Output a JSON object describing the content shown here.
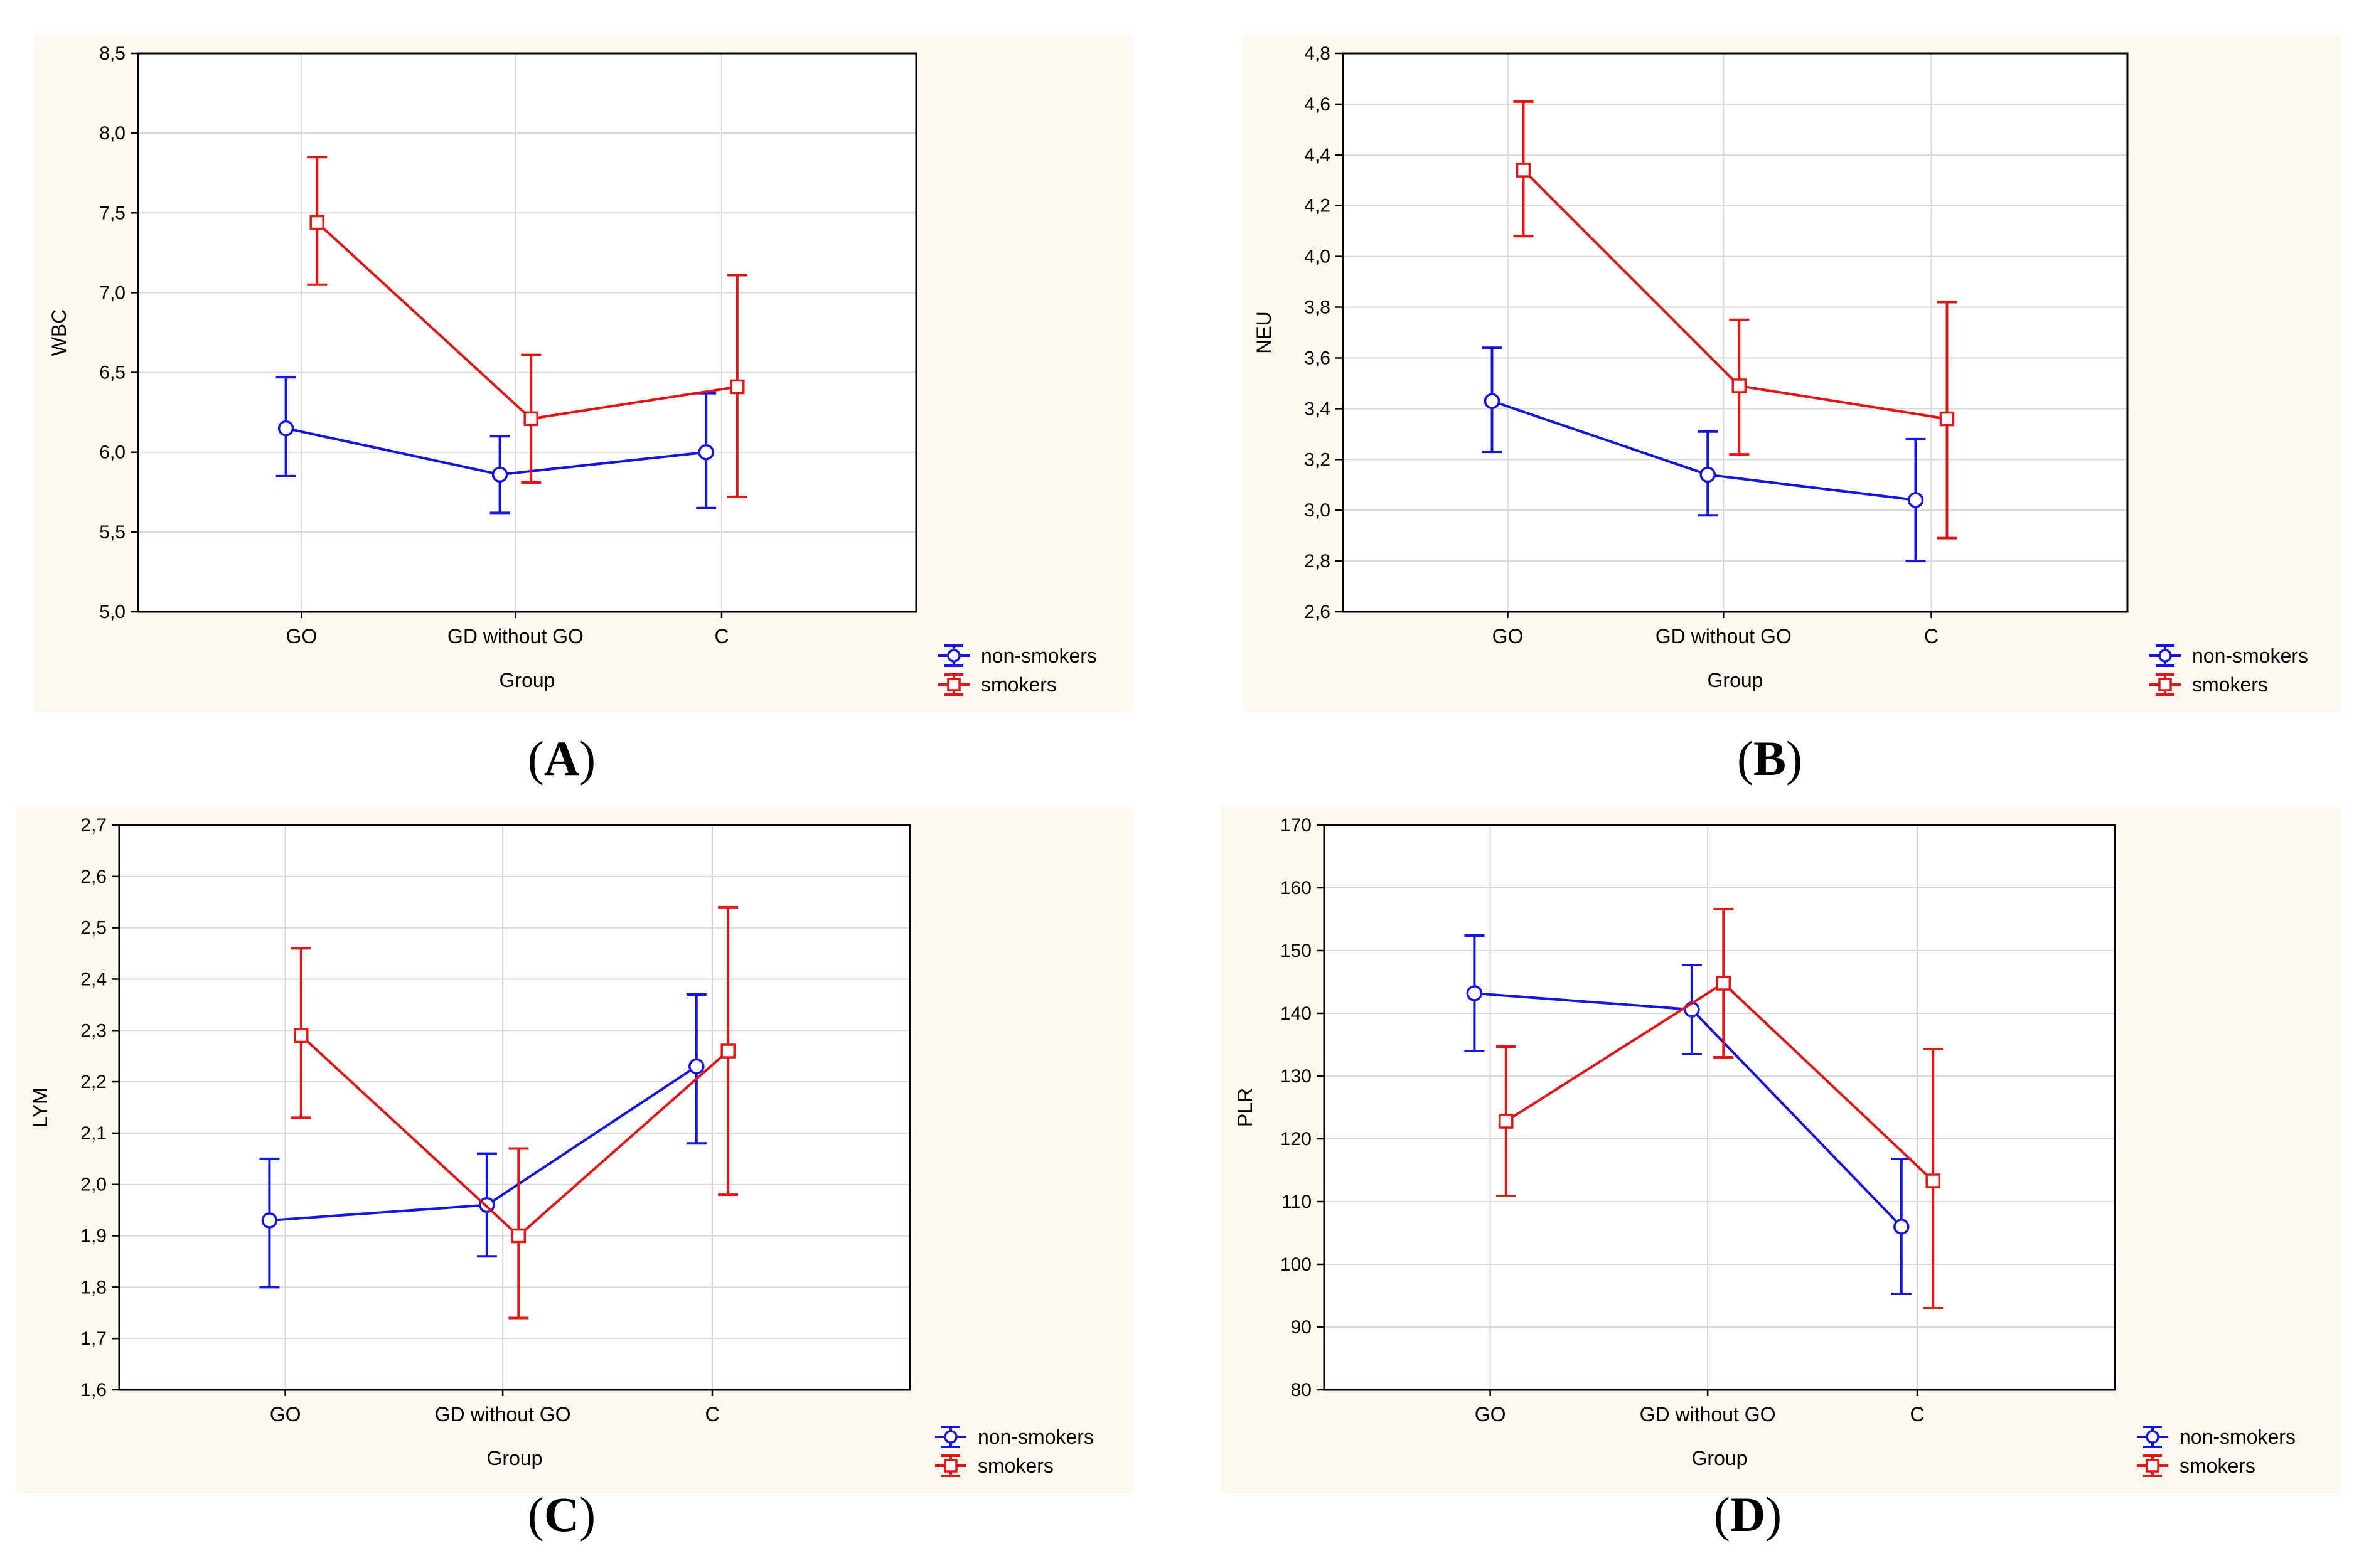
{
  "colors": {
    "panel_background": "#fef9ee",
    "plot_background": "#ffffff",
    "grid": "#d8d8d8",
    "axis": "#000000",
    "series": {
      "non-smokers": "#1414e6",
      "smokers": "#e61414"
    }
  },
  "chart_data": [
    {
      "panel": "A",
      "caption": {
        "open": "(",
        "letter": "A",
        "close": ")"
      },
      "type": "line",
      "error_bars": true,
      "title": "",
      "xlabel": "Group",
      "ylabel": "WBC",
      "categories": [
        "GO",
        "GD without GO",
        "C"
      ],
      "ylim": [
        5.0,
        8.5
      ],
      "yticks": [
        5.0,
        5.5,
        6.0,
        6.5,
        7.0,
        7.5,
        8.0,
        8.5
      ],
      "ytick_labels": [
        "5,0",
        "5,5",
        "6,0",
        "6,5",
        "7,0",
        "7,5",
        "8,0",
        "8,5"
      ],
      "grid": true,
      "legend_position": "bottom-right",
      "series": [
        {
          "name": "non-smokers",
          "marker": "circle",
          "values": [
            6.15,
            5.86,
            6.0
          ],
          "lower": [
            5.85,
            5.62,
            5.65
          ],
          "upper": [
            6.47,
            6.1,
            6.37
          ]
        },
        {
          "name": "smokers",
          "marker": "square",
          "values": [
            7.44,
            6.21,
            6.41
          ],
          "lower": [
            7.05,
            5.81,
            5.72
          ],
          "upper": [
            7.85,
            6.61,
            7.11
          ]
        }
      ]
    },
    {
      "panel": "B",
      "caption": {
        "open": "(",
        "letter": "B",
        "close": ")"
      },
      "type": "line",
      "error_bars": true,
      "title": "",
      "xlabel": "Group",
      "ylabel": "NEU",
      "categories": [
        "GO",
        "GD without GO",
        "C"
      ],
      "ylim": [
        2.6,
        4.8
      ],
      "yticks": [
        2.6,
        2.8,
        3.0,
        3.2,
        3.4,
        3.6,
        3.8,
        4.0,
        4.2,
        4.4,
        4.6,
        4.8
      ],
      "ytick_labels": [
        "2,6",
        "2,8",
        "3,0",
        "3,2",
        "3,4",
        "3,6",
        "3,8",
        "4,0",
        "4,2",
        "4,4",
        "4,6",
        "4,8"
      ],
      "grid": true,
      "legend_position": "bottom-right",
      "series": [
        {
          "name": "non-smokers",
          "marker": "circle",
          "values": [
            3.43,
            3.14,
            3.04
          ],
          "lower": [
            3.23,
            2.98,
            2.8
          ],
          "upper": [
            3.64,
            3.31,
            3.28
          ]
        },
        {
          "name": "smokers",
          "marker": "square",
          "values": [
            4.34,
            3.49,
            3.36
          ],
          "lower": [
            4.08,
            3.22,
            2.89
          ],
          "upper": [
            4.61,
            3.75,
            3.82
          ]
        }
      ]
    },
    {
      "panel": "C",
      "caption": {
        "open": "(",
        "letter": "C",
        "close": ")"
      },
      "type": "line",
      "error_bars": true,
      "title": "",
      "xlabel": "Group",
      "ylabel": "LYM",
      "categories": [
        "GO",
        "GD without GO",
        "C"
      ],
      "ylim": [
        1.6,
        2.7
      ],
      "yticks": [
        1.6,
        1.7,
        1.8,
        1.9,
        2.0,
        2.1,
        2.2,
        2.3,
        2.4,
        2.5,
        2.6,
        2.7
      ],
      "ytick_labels": [
        "1,6",
        "1,7",
        "1,8",
        "1,9",
        "2,0",
        "2,1",
        "2,2",
        "2,3",
        "2,4",
        "2,5",
        "2,6",
        "2,7"
      ],
      "grid": true,
      "legend_position": "bottom-right",
      "series": [
        {
          "name": "non-smokers",
          "marker": "circle",
          "values": [
            1.93,
            1.96,
            2.23
          ],
          "lower": [
            1.8,
            1.86,
            2.08
          ],
          "upper": [
            2.05,
            2.06,
            2.37
          ]
        },
        {
          "name": "smokers",
          "marker": "square",
          "values": [
            2.29,
            1.9,
            2.26
          ],
          "lower": [
            2.13,
            1.74,
            1.98
          ],
          "upper": [
            2.46,
            2.07,
            2.54
          ]
        }
      ]
    },
    {
      "panel": "D",
      "caption": {
        "open": "(",
        "letter": "D",
        "close": ")"
      },
      "type": "line",
      "error_bars": true,
      "title": "",
      "xlabel": "Group",
      "ylabel": "PLR",
      "categories": [
        "GO",
        "GD without GO",
        "C"
      ],
      "ylim": [
        80,
        170
      ],
      "yticks": [
        80,
        90,
        100,
        110,
        120,
        130,
        140,
        150,
        160,
        170
      ],
      "ytick_labels": [
        "80",
        "90",
        "100",
        "110",
        "120",
        "130",
        "140",
        "150",
        "160",
        "170"
      ],
      "grid": true,
      "legend_position": "bottom-right",
      "series": [
        {
          "name": "non-smokers",
          "marker": "circle",
          "values": [
            143.2,
            140.6,
            106.0
          ],
          "lower": [
            134.0,
            133.5,
            95.3
          ],
          "upper": [
            152.4,
            147.7,
            116.8
          ]
        },
        {
          "name": "smokers",
          "marker": "square",
          "values": [
            122.8,
            144.8,
            113.3
          ],
          "lower": [
            110.9,
            133.0,
            93.0
          ],
          "upper": [
            134.7,
            156.6,
            134.3
          ]
        }
      ]
    }
  ]
}
